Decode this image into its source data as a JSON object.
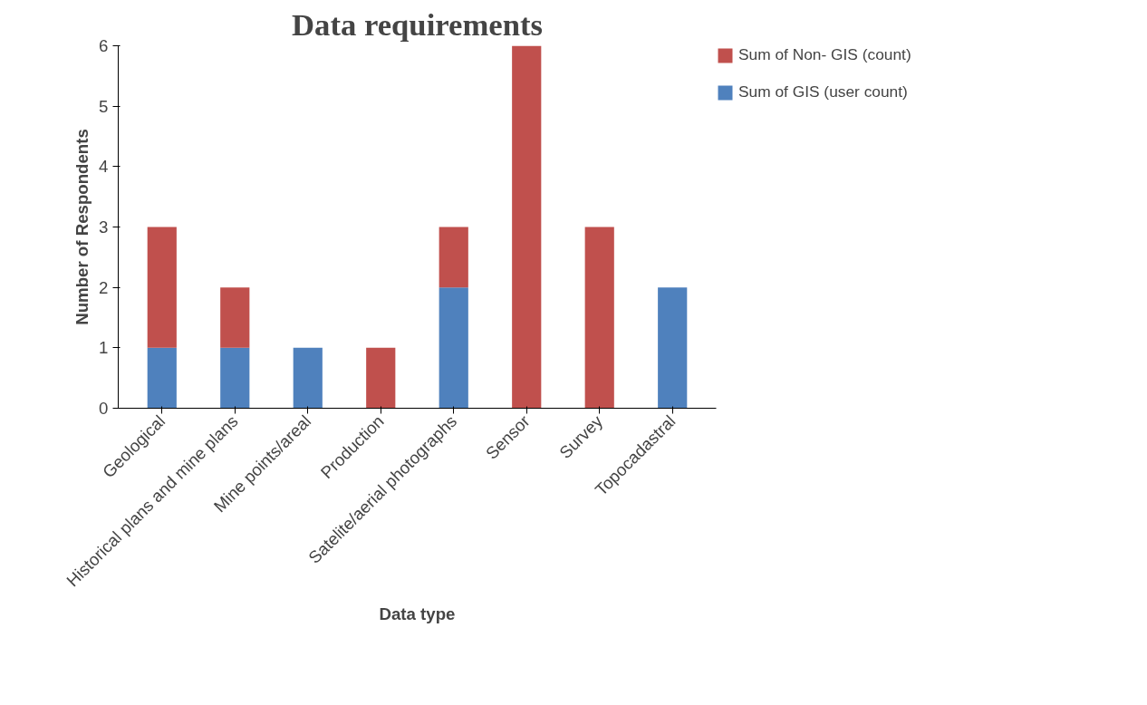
{
  "chart_data": {
    "type": "bar",
    "title": "Data requirements",
    "xlabel": "Data type",
    "ylabel": "Number of Respondents",
    "categories": [
      "Geological",
      "Historical plans and mine plans",
      "Mine points/areal",
      "Production",
      "Satelite/aerial photographs",
      "Sensor",
      "Survey",
      "Topocadastral"
    ],
    "stacked": true,
    "ylim": [
      0,
      6
    ],
    "yticks": [
      0,
      1,
      2,
      3,
      4,
      5,
      6
    ],
    "grid": false,
    "legend": "right",
    "series": [
      {
        "name": "Sum of GIS (user count)",
        "color": "#4f81bd",
        "values": [
          1,
          1,
          1,
          0,
          2,
          0,
          0,
          2
        ]
      },
      {
        "name": "Sum of Non- GIS (count)",
        "color": "#c0504d",
        "values": [
          2,
          1,
          0,
          1,
          1,
          6,
          3,
          0
        ]
      }
    ]
  }
}
